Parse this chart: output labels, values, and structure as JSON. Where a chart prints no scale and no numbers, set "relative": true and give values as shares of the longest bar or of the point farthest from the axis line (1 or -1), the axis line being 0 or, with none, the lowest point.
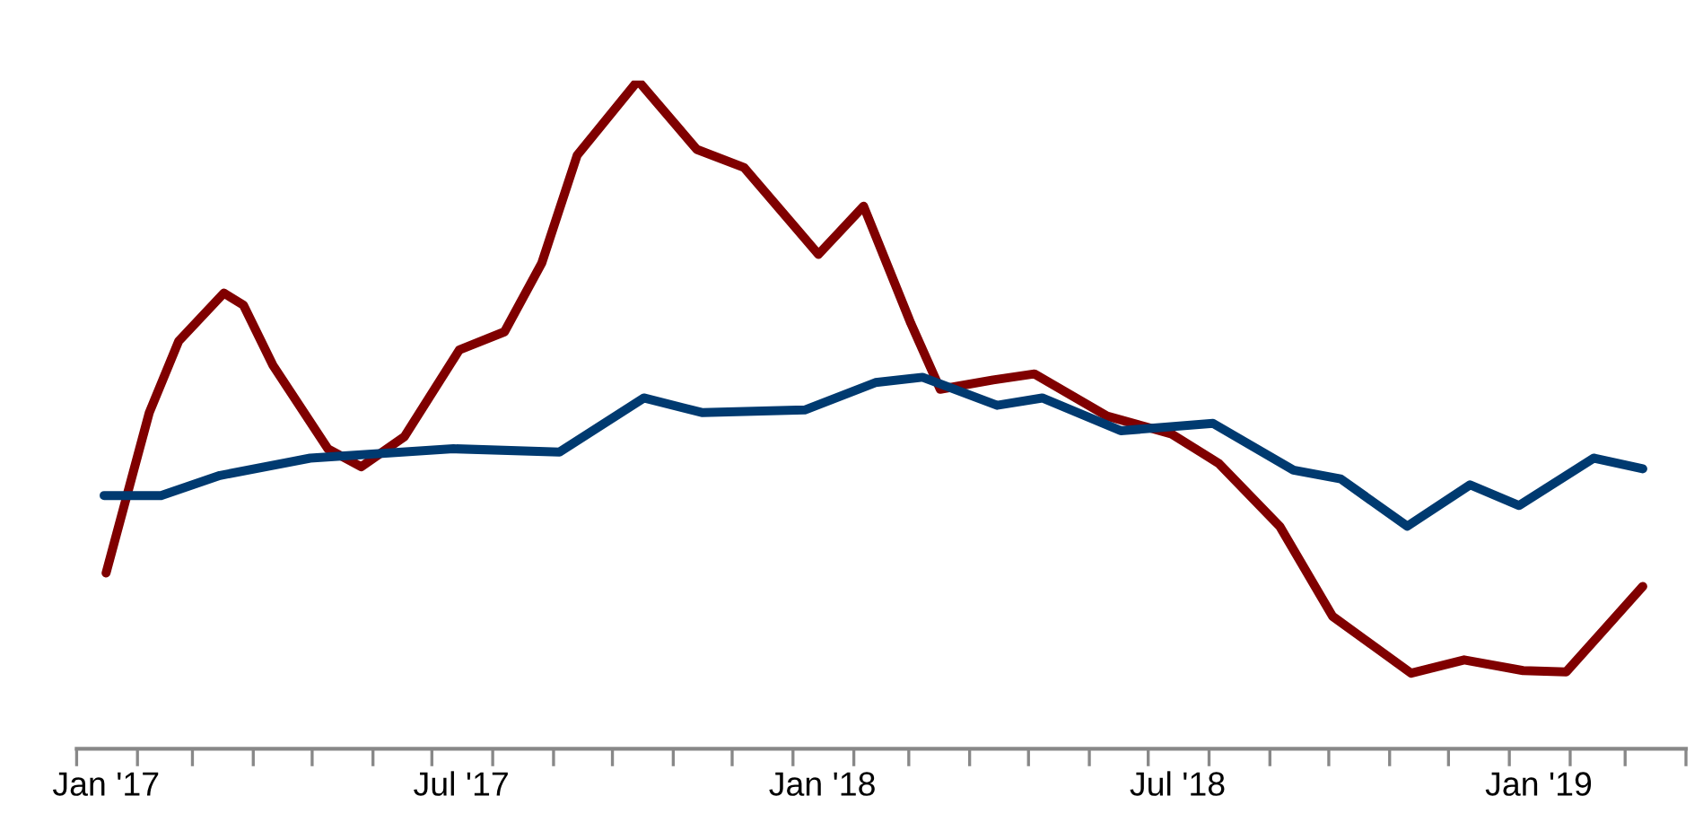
{
  "chart_data": {
    "type": "line",
    "relative": true,
    "xlim": [
      "2017-01-01",
      "2019-04-01"
    ],
    "xticks": [
      {
        "value": "2017-01-01",
        "label": null
      },
      {
        "value": "2017-02-01",
        "label": null
      },
      {
        "value": "2017-03-01",
        "label": null
      },
      {
        "value": "2017-04-01",
        "label": null
      },
      {
        "value": "2017-05-01",
        "label": null
      },
      {
        "value": "2017-06-01",
        "label": null
      },
      {
        "value": "2017-07-01",
        "label": null
      },
      {
        "value": "2017-08-01",
        "label": null
      },
      {
        "value": "2017-09-01",
        "label": null
      },
      {
        "value": "2017-10-01",
        "label": null
      },
      {
        "value": "2017-11-01",
        "label": null
      },
      {
        "value": "2017-12-01",
        "label": null
      },
      {
        "value": "2018-01-01",
        "label": null
      },
      {
        "value": "2018-02-01",
        "label": null
      },
      {
        "value": "2018-03-01",
        "label": null
      },
      {
        "value": "2018-04-01",
        "label": null
      },
      {
        "value": "2018-05-01",
        "label": null
      },
      {
        "value": "2018-06-01",
        "label": null
      },
      {
        "value": "2018-07-01",
        "label": null
      },
      {
        "value": "2018-08-01",
        "label": null
      },
      {
        "value": "2018-09-01",
        "label": null
      },
      {
        "value": "2018-10-01",
        "label": null
      },
      {
        "value": "2018-11-01",
        "label": null
      },
      {
        "value": "2018-12-01",
        "label": null
      },
      {
        "value": "2019-01-01",
        "label": null
      },
      {
        "value": "2019-02-01",
        "label": null
      },
      {
        "value": "2019-03-01",
        "label": null
      },
      {
        "value": "2019-04-01",
        "label": null
      },
      {
        "value": "2017-01-16",
        "label": "Jan '17"
      },
      {
        "value": "2017-07-16",
        "label": "Jul '17"
      },
      {
        "value": "2018-01-16",
        "label": "Jan '18"
      },
      {
        "value": "2018-07-16",
        "label": "Jul '18"
      },
      {
        "value": "2019-01-16",
        "label": "Jan '19"
      }
    ],
    "marker": "none",
    "line_style": "solid",
    "series": [
      {
        "color": "#800000",
        "x": [
          "2017-01-16",
          "2017-02-07",
          "2017-02-22",
          "2017-03-17",
          "2017-03-27",
          "2017-04-11",
          "2017-05-09",
          "2017-05-26",
          "2017-06-17",
          "2017-07-15",
          "2017-08-07",
          "2017-08-26",
          "2017-09-13",
          "2017-10-14",
          "2017-11-13",
          "2017-12-07",
          "2018-01-14",
          "2018-02-06",
          "2018-03-02",
          "2018-03-17",
          "2018-04-13",
          "2018-05-04",
          "2018-06-10",
          "2018-07-13",
          "2018-08-06",
          "2018-09-06",
          "2018-10-03",
          "2018-11-12",
          "2018-12-09",
          "2019-01-08",
          "2019-01-30",
          "2019-03-10"
        ],
        "values": [
          0.263,
          0.503,
          0.61,
          0.682,
          0.664,
          0.574,
          0.449,
          0.422,
          0.467,
          0.597,
          0.624,
          0.727,
          0.888,
          1,
          0.897,
          0.87,
          0.74,
          0.812,
          0.637,
          0.538,
          0.552,
          0.561,
          0.498,
          0.471,
          0.427,
          0.333,
          0.198,
          0.113,
          0.133,
          0.117,
          0.115,
          0.243
        ]
      },
      {
        "color": "#003a70",
        "x": [
          "2017-01-15",
          "2017-02-13",
          "2017-03-15",
          "2017-04-30",
          "2017-07-12",
          "2017-09-04",
          "2017-10-17",
          "2017-11-16",
          "2018-01-07",
          "2018-02-12",
          "2018-03-08",
          "2018-04-15",
          "2018-05-08",
          "2018-06-17",
          "2018-08-03",
          "2018-09-13",
          "2018-10-07",
          "2018-11-10",
          "2018-12-12",
          "2019-01-06",
          "2019-02-13",
          "2019-03-10"
        ],
        "values": [
          0.379,
          0.379,
          0.409,
          0.435,
          0.449,
          0.444,
          0.525,
          0.503,
          0.507,
          0.548,
          0.556,
          0.514,
          0.525,
          0.476,
          0.487,
          0.417,
          0.404,
          0.333,
          0.395,
          0.364,
          0.435,
          0.419
        ]
      }
    ]
  }
}
